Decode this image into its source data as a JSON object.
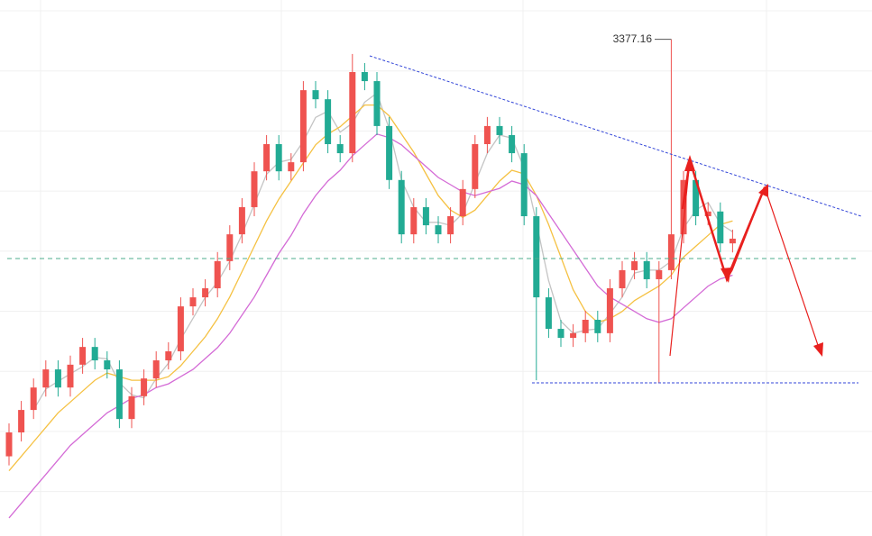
{
  "chart_data": {
    "type": "candlestick",
    "ylim": [
      3240,
      3388
    ],
    "up_color": "#ef5350",
    "down_color": "#22ab94",
    "open": [
      3262.0,
      3268.6,
      3274.8,
      3281.0,
      3286.0,
      3281.0,
      3287.3,
      3292.2,
      3288.5,
      3286.0,
      3272.3,
      3278.6,
      3283.5,
      3288.5,
      3291.0,
      3303.4,
      3305.9,
      3308.4,
      3315.9,
      3323.3,
      3330.8,
      3340.7,
      3348.2,
      3340.7,
      3343.2,
      3363.1,
      3360.6,
      3348.2,
      3345.7,
      3368.1,
      3365.6,
      3353.2,
      3338.3,
      3323.3,
      3330.8,
      3325.8,
      3323.3,
      3328.3,
      3335.8,
      3348.2,
      3353.2,
      3350.7,
      3345.7,
      3328.3,
      3305.9,
      3297.2,
      3294.7,
      3296.0,
      3299.7,
      3296.0,
      3308.4,
      3313.4,
      3315.9,
      3310.9,
      3313.4,
      3323.3,
      3338.3,
      3328.3,
      3329.6,
      3320.8
    ],
    "high": [
      3271.1,
      3277.3,
      3283.5,
      3288.5,
      3288.5,
      3289.8,
      3294.7,
      3294.7,
      3291.0,
      3288.5,
      3281.1,
      3286.0,
      3291.0,
      3293.5,
      3305.9,
      3308.4,
      3310.9,
      3318.4,
      3325.8,
      3333.3,
      3343.2,
      3350.7,
      3350.7,
      3345.7,
      3365.6,
      3365.6,
      3363.1,
      3350.7,
      3373.1,
      3370.6,
      3368.1,
      3355.7,
      3340.8,
      3333.3,
      3333.3,
      3328.3,
      3330.8,
      3338.3,
      3350.7,
      3355.7,
      3355.7,
      3353.2,
      3348.2,
      3330.8,
      3308.4,
      3299.7,
      3298.5,
      3302.2,
      3302.2,
      3310.9,
      3315.9,
      3318.4,
      3318.4,
      3315.9,
      3377.16,
      3340.8,
      3340.8,
      3332.1,
      3332.1,
      3324.6
    ],
    "low": [
      3259.5,
      3266.1,
      3272.3,
      3278.5,
      3278.5,
      3278.5,
      3284.8,
      3286.0,
      3283.5,
      3269.8,
      3269.8,
      3276.1,
      3281.0,
      3286.0,
      3288.5,
      3300.9,
      3303.4,
      3305.9,
      3313.4,
      3320.8,
      3328.3,
      3338.2,
      3338.2,
      3338.2,
      3340.7,
      3358.1,
      3345.7,
      3343.2,
      3343.2,
      3363.1,
      3350.7,
      3335.8,
      3320.8,
      3320.8,
      3323.3,
      3320.8,
      3320.8,
      3325.8,
      3333.3,
      3345.7,
      3348.2,
      3343.2,
      3325.8,
      3283.0,
      3294.7,
      3292.2,
      3292.2,
      3293.5,
      3293.5,
      3293.5,
      3305.9,
      3310.9,
      3308.4,
      3282.3,
      3310.9,
      3320.8,
      3325.8,
      3325.8,
      3318.3,
      3318.3
    ],
    "close": [
      3268.6,
      3274.8,
      3281.0,
      3286.0,
      3281.0,
      3287.3,
      3292.2,
      3288.5,
      3286.0,
      3272.3,
      3278.6,
      3283.5,
      3288.5,
      3291.0,
      3303.4,
      3305.9,
      3308.4,
      3315.9,
      3323.3,
      3330.8,
      3340.7,
      3348.2,
      3340.7,
      3343.2,
      3363.1,
      3360.6,
      3348.2,
      3345.7,
      3368.1,
      3365.6,
      3353.2,
      3338.3,
      3323.3,
      3330.8,
      3325.8,
      3323.3,
      3328.3,
      3335.8,
      3348.2,
      3353.2,
      3350.7,
      3345.7,
      3328.3,
      3305.9,
      3297.2,
      3294.7,
      3296.0,
      3299.7,
      3296.0,
      3308.4,
      3313.4,
      3315.9,
      3310.9,
      3313.4,
      3323.3,
      3338.3,
      3328.3,
      3329.6,
      3320.8,
      3322.1
    ],
    "series": [
      {
        "color": "#c4c4c4",
        "values": [
          null,
          null,
          3274.8,
          3280.6,
          3282.7,
          3284.8,
          3286.8,
          3289.3,
          3288.9,
          3282.3,
          3279.0,
          3278.1,
          3283.5,
          3287.7,
          3294.3,
          3300.1,
          3305.9,
          3310.1,
          3315.9,
          3323.3,
          3331.6,
          3339.9,
          3343.2,
          3344.0,
          3349.0,
          3355.6,
          3357.3,
          3351.5,
          3354.0,
          3359.8,
          3362.3,
          3352.4,
          3338.3,
          3330.8,
          3326.6,
          3326.6,
          3325.8,
          3329.1,
          3337.4,
          3345.7,
          3350.7,
          3349.9,
          3341.6,
          3326.6,
          3310.5,
          3299.3,
          3296.0,
          3296.8,
          3297.2,
          3301.4,
          3306.0,
          3312.6,
          3313.4,
          3313.4,
          3315.9,
          3325.0,
          3330.0,
          3332.1,
          3326.2,
          3324.0
        ]
      },
      {
        "color": "#f5c142",
        "values": [
          3258,
          3262,
          3266,
          3270,
          3274,
          3277,
          3280,
          3283,
          3285,
          3284,
          3283,
          3283,
          3283,
          3284,
          3287,
          3291,
          3295,
          3300,
          3306,
          3313,
          3320,
          3327,
          3333,
          3338,
          3343,
          3348,
          3351,
          3353,
          3356,
          3359,
          3359,
          3356,
          3351,
          3346,
          3340,
          3334,
          3330,
          3328,
          3330,
          3334,
          3338,
          3341,
          3340,
          3334,
          3326,
          3317,
          3308,
          3302,
          3299,
          3300,
          3302,
          3305,
          3307,
          3309,
          3312,
          3317,
          3320,
          3323,
          3326,
          3327
        ]
      },
      {
        "color": "#d46bd6",
        "values": [
          3245,
          3249,
          3253,
          3257,
          3261,
          3265,
          3268,
          3271,
          3274,
          3276,
          3278,
          3279,
          3281,
          3282,
          3284,
          3286,
          3289,
          3292,
          3296,
          3301,
          3306,
          3312,
          3318,
          3323,
          3329,
          3334,
          3338,
          3341,
          3345,
          3348,
          3351,
          3350,
          3348,
          3345,
          3342,
          3339,
          3337,
          3335,
          3334,
          3335,
          3336,
          3338,
          3337,
          3334,
          3329,
          3324,
          3319,
          3314,
          3309,
          3306,
          3304,
          3302,
          3300,
          3299,
          3300,
          3303,
          3306,
          3309,
          3311,
          3312
        ]
      }
    ]
  }
}
